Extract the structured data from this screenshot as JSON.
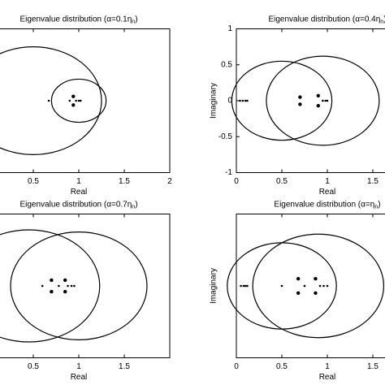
{
  "chart_data": [
    {
      "type": "scatter",
      "title": "Eigenvalue distribution (α=0.1η",
      "title_subscript": "n",
      "title_suffix": ")",
      "xlabel": "Real",
      "xlim": [
        0,
        2
      ],
      "ylim": [
        -1,
        1
      ],
      "xticks": [
        0.5,
        1,
        1.5,
        2
      ],
      "x": [
        0.67,
        0.9,
        0.94,
        0.94,
        0.97,
        1.0,
        1.02
      ],
      "y": [
        0,
        0,
        0.06,
        -0.06,
        0,
        0,
        0
      ],
      "circles": [
        {
          "center": 0.5,
          "radius": 0.75
        },
        {
          "center": 1.0,
          "radius": 0.3
        }
      ]
    },
    {
      "type": "scatter",
      "title": "Eigenvalue distribution (α=0.4η",
      "title_subscript": "n",
      "title_suffix": ")",
      "xlabel": "Real",
      "ylabel": "Imaginary",
      "xlim": [
        0,
        2
      ],
      "ylim": [
        -1,
        1
      ],
      "xticks": [
        0,
        0.5,
        1,
        1.5
      ],
      "yticks": [
        -1,
        -0.5,
        0,
        0.5,
        1
      ],
      "x": [
        0.04,
        0.07,
        0.1,
        0.12,
        0.7,
        0.7,
        0.9,
        0.9,
        0.95,
        0.98,
        1.0
      ],
      "y": [
        0,
        0,
        0,
        0,
        0.05,
        -0.05,
        0.07,
        -0.07,
        0,
        0,
        0
      ],
      "circles": [
        {
          "center": 0.5,
          "radius": 0.55
        },
        {
          "center": 0.95,
          "radius": 0.62
        }
      ]
    },
    {
      "type": "scatter",
      "title": "Eigenvalue distribution (α=0.7η",
      "title_subscript": "n",
      "title_suffix": ")",
      "xlabel": "Real",
      "xlim": [
        0,
        2
      ],
      "ylim": [
        -1,
        1
      ],
      "xticks": [
        0.5,
        1,
        1.5
      ],
      "x": [
        0.6,
        0.7,
        0.7,
        0.78,
        0.85,
        0.85,
        0.88,
        0.92,
        0.95
      ],
      "y": [
        0,
        0.08,
        -0.08,
        0,
        0.08,
        -0.08,
        0,
        0,
        0
      ],
      "circles": [
        {
          "center": 0.45,
          "radius": 0.78
        },
        {
          "center": 1.0,
          "radius": 0.75
        }
      ]
    },
    {
      "type": "scatter",
      "title": "Eigenvalue distribution (α=η",
      "title_subscript": "n",
      "title_suffix": ")",
      "xlabel": "Real",
      "ylabel": "Imaginary",
      "xlim": [
        0,
        2
      ],
      "ylim": [
        -1,
        1
      ],
      "xticks": [
        0,
        0.5,
        1,
        1.5
      ],
      "x": [
        0.05,
        0.08,
        0.1,
        0.12,
        0.5,
        0.68,
        0.68,
        0.75,
        0.87,
        0.87,
        0.92,
        0.96,
        1.0
      ],
      "y": [
        0,
        0,
        0,
        0,
        0,
        0.1,
        -0.1,
        0,
        0.1,
        -0.1,
        0,
        0,
        0
      ],
      "circles": [
        {
          "center": 0.5,
          "radius": 0.6
        },
        {
          "center": 0.9,
          "radius": 0.72
        }
      ]
    }
  ]
}
